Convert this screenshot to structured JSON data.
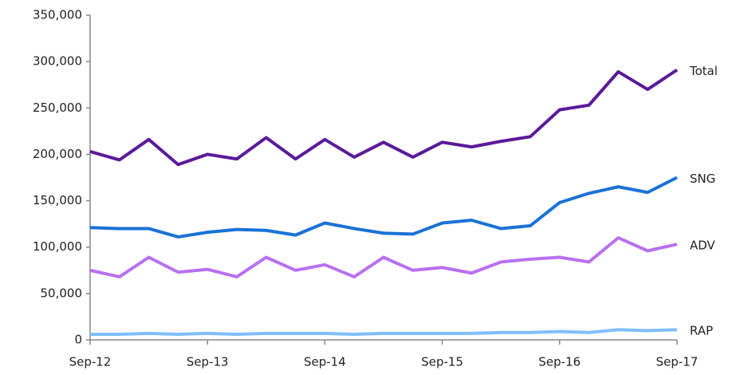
{
  "chart_data": {
    "type": "line",
    "categories": [
      "Sep-12",
      null,
      null,
      null,
      "Sep-13",
      null,
      null,
      null,
      "Sep-14",
      null,
      null,
      null,
      "Sep-15",
      null,
      null,
      null,
      "Sep-16",
      null,
      null,
      null,
      "Sep-17"
    ],
    "series": [
      {
        "name": "Total",
        "color": "#5b1a9a",
        "values": [
          203000,
          194000,
          216000,
          189000,
          200000,
          195000,
          218000,
          195000,
          216000,
          197000,
          213000,
          197000,
          213000,
          208000,
          214000,
          219000,
          248000,
          253000,
          289000,
          270000,
          291000
        ]
      },
      {
        "name": "SNG",
        "color": "#1a72d6",
        "values": [
          121000,
          120000,
          120000,
          111000,
          116000,
          119000,
          118000,
          113000,
          126000,
          120000,
          115000,
          114000,
          126000,
          129000,
          120000,
          123000,
          148000,
          158000,
          165000,
          159000,
          175000
        ]
      },
      {
        "name": "ADV",
        "color": "#b870f0",
        "values": [
          75000,
          68000,
          89000,
          73000,
          76000,
          68000,
          89000,
          75000,
          81000,
          68000,
          89000,
          75000,
          78000,
          72000,
          84000,
          87000,
          89000,
          84000,
          110000,
          96000,
          103000
        ]
      },
      {
        "name": "RAP",
        "color": "#7fbfff",
        "values": [
          6000,
          6000,
          7000,
          6000,
          7000,
          6000,
          7000,
          7000,
          7000,
          6000,
          7000,
          7000,
          7000,
          7000,
          8000,
          8000,
          9000,
          8000,
          11000,
          10000,
          11000
        ]
      }
    ],
    "ylim": [
      0,
      350000
    ],
    "yticks": [
      0,
      {
        "value": 50000,
        "label": "50,000"
      },
      {
        "value": 100000,
        "label": "100,000"
      },
      {
        "value": 150000,
        "label": "150,000"
      },
      {
        "value": 200000,
        "label": "200,000"
      },
      {
        "value": 250000,
        "label": "250,000"
      },
      {
        "value": 300000,
        "label": "300,000"
      },
      {
        "value": 350000,
        "label": "350,000"
      }
    ],
    "grid": false
  }
}
